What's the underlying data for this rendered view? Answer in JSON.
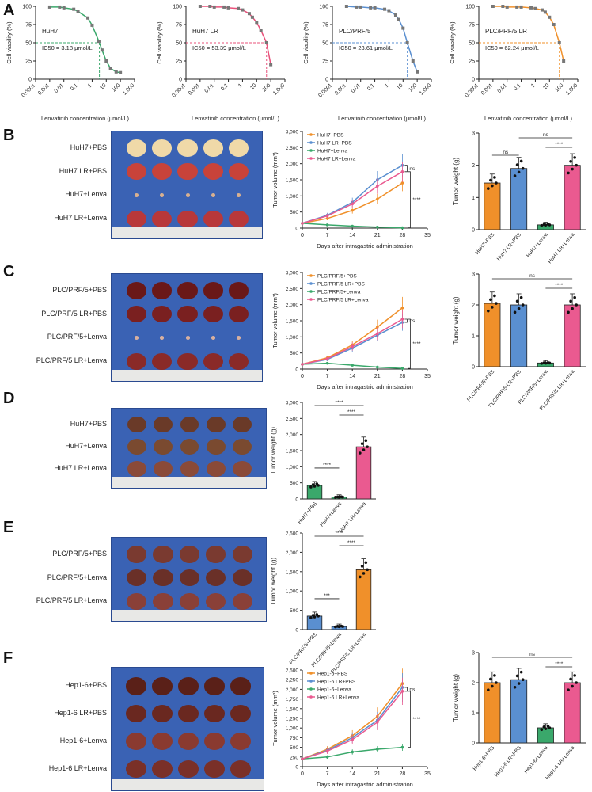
{
  "panels": [
    "A",
    "B",
    "C",
    "D",
    "E",
    "F"
  ],
  "colors": {
    "green": "#3aa86b",
    "red": "#e8507a",
    "blue": "#5a8fd0",
    "orange": "#f0902a",
    "pink": "#ea5a90",
    "gray": "#999999"
  },
  "chart_data": [
    {
      "id": "A1",
      "type": "line",
      "xlabel": "Lenvatinib concentration (μmol/L)",
      "ylabel": "Cell viability (%)",
      "label": "HuH7",
      "ic50": "IC50 = 3.18 μmol/L",
      "ylim": [
        0,
        100
      ],
      "yticks": [
        "0",
        "25",
        "50",
        "75",
        "100"
      ],
      "xticks": [
        "0.0001",
        "0.001",
        "0.01",
        "0.1",
        "1",
        "10",
        "100",
        "1,000"
      ],
      "color": "#3aa86b",
      "x": [
        0.001,
        0.005,
        0.01,
        0.05,
        0.1,
        0.5,
        1,
        3,
        5,
        10,
        20,
        50,
        100
      ],
      "y": [
        99,
        99,
        98,
        96,
        93,
        84,
        74,
        52,
        40,
        25,
        15,
        10,
        9
      ]
    },
    {
      "id": "A2",
      "type": "line",
      "xlabel": "Lenvatinib concentration (μmol/L)",
      "ylabel": "Cell viability (%)",
      "label": "HuH7 LR",
      "ic50": "IC50 = 53.39 μmol/L",
      "ylim": [
        0,
        100
      ],
      "yticks": [
        "0",
        "25",
        "50",
        "75",
        "100"
      ],
      "xticks": [
        "0.0001",
        "0.001",
        "0.01",
        "0.1",
        "1",
        "10",
        "100",
        "1,000"
      ],
      "color": "#e8507a",
      "x": [
        0.001,
        0.005,
        0.01,
        0.05,
        0.1,
        0.5,
        1,
        3,
        5,
        10,
        20,
        50,
        100
      ],
      "y": [
        100,
        100,
        99,
        99,
        98,
        97,
        95,
        90,
        85,
        78,
        67,
        50,
        20
      ]
    },
    {
      "id": "A3",
      "type": "line",
      "xlabel": "Lenvatinib concentration (μmol/L)",
      "ylabel": "Cell viability (%)",
      "label": "PLC/PRF/5",
      "ic50": "IC50 = 23.61 μmol/L",
      "ylim": [
        0,
        100
      ],
      "yticks": [
        "0",
        "25",
        "50",
        "75",
        "100"
      ],
      "xticks": [
        "0.0001",
        "0.001",
        "0.01",
        "0.1",
        "1",
        "10",
        "100",
        "1,000"
      ],
      "color": "#5a8fd0",
      "x": [
        0.001,
        0.005,
        0.01,
        0.05,
        0.1,
        0.5,
        1,
        3,
        5,
        10,
        20,
        50,
        100
      ],
      "y": [
        100,
        99,
        99,
        98,
        98,
        96,
        94,
        88,
        82,
        70,
        50,
        25,
        10
      ]
    },
    {
      "id": "A4",
      "type": "line",
      "xlabel": "Lenvatinib concentration (μmol/L)",
      "ylabel": "Cell viability (%)",
      "label": "PLC/PRF/5 LR",
      "ic50": "IC50 = 62.24 μmol/L",
      "ylim": [
        0,
        100
      ],
      "yticks": [
        "0",
        "25",
        "50",
        "75",
        "100"
      ],
      "xticks": [
        "0.0001",
        "0.001",
        "0.01",
        "0.1",
        "1",
        "10",
        "100",
        "1,000"
      ],
      "color": "#f0902a",
      "x": [
        0.001,
        0.005,
        0.01,
        0.05,
        0.1,
        0.5,
        1,
        3,
        5,
        10,
        20,
        50,
        100
      ],
      "y": [
        100,
        100,
        99,
        99,
        99,
        98,
        97,
        95,
        92,
        85,
        75,
        50,
        25
      ]
    },
    {
      "id": "B2",
      "type": "line",
      "xlabel": "Days after intragastric administration",
      "ylabel": "Tumor volume (mm³)",
      "ylim": [
        0,
        3000
      ],
      "yticks": [
        "0",
        "500",
        "1,000",
        "1,500",
        "2,000",
        "2,500",
        "3,000"
      ],
      "xticks": [
        "0",
        "7",
        "14",
        "21",
        "28",
        "35"
      ],
      "xvals": [
        0,
        7,
        14,
        21,
        28,
        35
      ],
      "x": [
        0,
        7,
        14,
        21,
        28
      ],
      "sig": [
        "ns",
        "****"
      ],
      "series": [
        {
          "name": "HuH7+PBS",
          "color": "#f0902a",
          "values": [
            150,
            300,
            550,
            900,
            1400
          ]
        },
        {
          "name": "HuH7 LR+PBS",
          "color": "#5a8fd0",
          "values": [
            150,
            400,
            800,
            1500,
            1950
          ]
        },
        {
          "name": "HuH7+Lenva",
          "color": "#3aa86b",
          "values": [
            150,
            100,
            60,
            30,
            10
          ]
        },
        {
          "name": "HuH7 LR+Lenva",
          "color": "#ea5a90",
          "values": [
            150,
            380,
            750,
            1300,
            1750
          ]
        }
      ]
    },
    {
      "id": "B3",
      "type": "bar",
      "ylabel": "Tumor weight (g)",
      "ylim": [
        0,
        3
      ],
      "yticks": [
        "0",
        "1",
        "2",
        "3"
      ],
      "categories": [
        "HuH7+PBS",
        "HuH7 LR+PBS",
        "HuH7+Lenva",
        "HuH7 LR+Lenva"
      ],
      "values": [
        1.45,
        1.9,
        0.15,
        2.0
      ],
      "colors": [
        "#f0902a",
        "#5a8fd0",
        "#3aa86b",
        "#ea5a90"
      ],
      "sig": [
        "ns",
        "ns",
        "****"
      ]
    },
    {
      "id": "C2",
      "type": "line",
      "xlabel": "Days after intragastric administration",
      "ylabel": "Tumor volume (mm³)",
      "ylim": [
        0,
        3000
      ],
      "yticks": [
        "0",
        "500",
        "1,000",
        "1,500",
        "2,000",
        "2,500",
        "3,000"
      ],
      "xticks": [
        "0",
        "7",
        "14",
        "21",
        "28",
        "35"
      ],
      "xvals": [
        0,
        7,
        14,
        21,
        28,
        35
      ],
      "x": [
        0,
        7,
        14,
        21,
        28
      ],
      "sig": [
        "ns",
        "****"
      ],
      "series": [
        {
          "name": "PLC/PRF/5+PBS",
          "color": "#f0902a",
          "values": [
            150,
            350,
            750,
            1300,
            1900
          ]
        },
        {
          "name": "PLC/PRF/5 LR+PBS",
          "color": "#5a8fd0",
          "values": [
            150,
            300,
            650,
            1050,
            1450
          ]
        },
        {
          "name": "PLC/PRF/5+Lenva",
          "color": "#3aa86b",
          "values": [
            150,
            180,
            120,
            60,
            20
          ]
        },
        {
          "name": "PLC/PRF/5 LR+Lenva",
          "color": "#ea5a90",
          "values": [
            150,
            320,
            700,
            1100,
            1550
          ]
        }
      ]
    },
    {
      "id": "C3",
      "type": "bar",
      "ylabel": "Tumor weight (g)",
      "ylim": [
        0,
        3
      ],
      "yticks": [
        "0",
        "1",
        "2",
        "3"
      ],
      "categories": [
        "PLC/PRF/5+PBS",
        "PLC/PRF/5 LR+PBS",
        "PLC/PRF/5+Lenva",
        "PLC/PRF/5 LR+Lenva"
      ],
      "values": [
        2.05,
        2.0,
        0.12,
        2.0
      ],
      "colors": [
        "#f0902a",
        "#5a8fd0",
        "#3aa86b",
        "#ea5a90"
      ],
      "sig": [
        "ns",
        "****"
      ]
    },
    {
      "id": "D2",
      "type": "bar",
      "ylabel": "Tumor weight (g)",
      "ylim": [
        0,
        3000
      ],
      "yticks": [
        "0",
        "500",
        "1,000",
        "1,500",
        "2,000",
        "2,500",
        "3,000"
      ],
      "categories": [
        "HuH7+PBS",
        "HuH7+Lenva",
        "HuH7 LR+Lenva"
      ],
      "values": [
        420,
        60,
        1620
      ],
      "colors": [
        "#3aa86b",
        "#3aa86b",
        "#ea5a90"
      ],
      "sig": [
        "****",
        "****",
        "****"
      ]
    },
    {
      "id": "E2",
      "type": "bar",
      "ylabel": "Tumor weight (g)",
      "ylim": [
        0,
        2500
      ],
      "yticks": [
        "0",
        "500",
        "1,000",
        "1,500",
        "2,000",
        "2,500"
      ],
      "categories": [
        "PLC/PRF/5+PBS",
        "PLC/PRF/5+Lenva",
        "PLC/PRF/5 LR+Lenva"
      ],
      "values": [
        350,
        80,
        1550
      ],
      "colors": [
        "#5a8fd0",
        "#5a8fd0",
        "#f0902a"
      ],
      "sig": [
        "***",
        "****",
        "****"
      ]
    },
    {
      "id": "F2",
      "type": "line",
      "xlabel": "Days after intragastric administration",
      "ylabel": "Tumor volume (mm³)",
      "ylim": [
        0,
        2500
      ],
      "yticks": [
        "0",
        "250",
        "500",
        "750",
        "1,000",
        "1,250",
        "1,500",
        "1,750",
        "2,000",
        "2,250",
        "2,500"
      ],
      "xticks": [
        "0",
        "7",
        "14",
        "21",
        "28",
        "35"
      ],
      "xvals": [
        0,
        7,
        14,
        21,
        28,
        35
      ],
      "x": [
        0,
        7,
        14,
        21,
        28
      ],
      "sig": [
        "ns",
        "****"
      ],
      "series": [
        {
          "name": "Hep1-6+PBS",
          "color": "#f0902a",
          "values": [
            200,
            450,
            800,
            1300,
            2150
          ]
        },
        {
          "name": "Hep1-6 LR+PBS",
          "color": "#5a8fd0",
          "values": [
            200,
            420,
            750,
            1200,
            2050
          ]
        },
        {
          "name": "Hep1-6+Lenva",
          "color": "#3aa86b",
          "values": [
            200,
            250,
            380,
            450,
            500
          ]
        },
        {
          "name": "Hep1-6 LR+Lenva",
          "color": "#ea5a90",
          "values": [
            200,
            400,
            700,
            1150,
            1950
          ]
        }
      ]
    },
    {
      "id": "F3",
      "type": "bar",
      "ylabel": "Tumor weight (g)",
      "ylim": [
        0,
        3
      ],
      "yticks": [
        "0",
        "1",
        "2",
        "3"
      ],
      "categories": [
        "Hep1-6+PBS",
        "Hep1-6 LR+PBS",
        "Hep1-6+Lenva",
        "Hep1-6 LR+Lenva"
      ],
      "values": [
        2.0,
        2.1,
        0.5,
        2.0
      ],
      "colors": [
        "#f0902a",
        "#5a8fd0",
        "#3aa86b",
        "#ea5a90"
      ],
      "sig": [
        "ns",
        "****"
      ]
    }
  ],
  "photos": {
    "B": [
      "HuH7+PBS",
      "HuH7 LR+PBS",
      "HuH7+Lenva",
      "HuH7 LR+Lenva"
    ],
    "C": [
      "PLC/PRF/5+PBS",
      "PLC/PRF/5 LR+PBS",
      "PLC/PRF/5+Lenva",
      "PLC/PRF/5 LR+Lenva"
    ],
    "D": [
      "HuH7+PBS",
      "HuH7+Lenva",
      "HuH7 LR+Lenva"
    ],
    "E": [
      "PLC/PRF/5+PBS",
      "PLC/PRF/5+Lenva",
      "PLC/PRF/5 LR+Lenva"
    ],
    "F": [
      "Hep1-6+PBS",
      "Hep1-6 LR+PBS",
      "Hep1-6+Lenva",
      "Hep1-6 LR+Lenva"
    ]
  }
}
